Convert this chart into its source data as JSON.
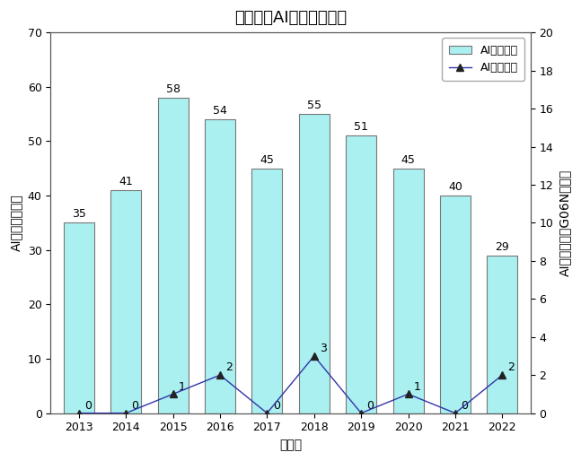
{
  "title": "福井県のAI関連特許出願",
  "years": [
    2013,
    2014,
    2015,
    2016,
    2017,
    2018,
    2019,
    2020,
    2021,
    2022
  ],
  "bar_values": [
    35,
    41,
    58,
    54,
    45,
    55,
    51,
    45,
    40,
    29
  ],
  "line_values": [
    0,
    0,
    1,
    2,
    0,
    3,
    0,
    1,
    0,
    2
  ],
  "bar_color": "#aaf0f0",
  "bar_edgecolor": "#777777",
  "line_color": "#3333aa",
  "line_marker": "^",
  "line_markerfacecolor": "#222222",
  "line_markeredgecolor": "#222222",
  "left_ylabel": "AI関連発明／件",
  "right_ylabel": "AIコア発明（G06N）／件",
  "xlabel": "出願年",
  "left_ylim": [
    0,
    70
  ],
  "right_ylim": [
    0,
    20
  ],
  "left_yticks": [
    0,
    10,
    20,
    30,
    40,
    50,
    60,
    70
  ],
  "right_yticks": [
    0,
    2,
    4,
    6,
    8,
    10,
    12,
    14,
    16,
    18,
    20
  ],
  "legend_bar_label": "AI関連発明",
  "legend_line_label": "AIコア発明",
  "background_color": "#ffffff",
  "plot_bg_color": "#ffffff",
  "title_fontsize": 13,
  "axis_fontsize": 10,
  "tick_fontsize": 9,
  "label_fontsize": 9,
  "legend_fontsize": 9
}
